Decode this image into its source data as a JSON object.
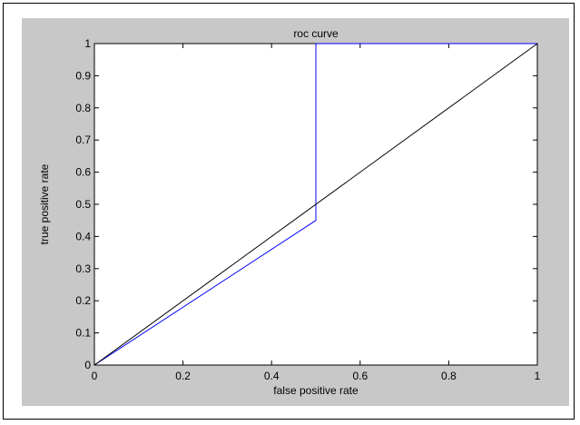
{
  "chart_data": {
    "type": "line",
    "title": "roc curve",
    "xlabel": "false positive rate",
    "ylabel": "true positive rate",
    "xlim": [
      0,
      1
    ],
    "ylim": [
      0,
      1
    ],
    "xticks": [
      0,
      0.2,
      0.4,
      0.6,
      0.8,
      1
    ],
    "xtick_labels": [
      "0",
      "0.2",
      "0.4",
      "0.6",
      "0.8",
      "1"
    ],
    "yticks": [
      0,
      0.1,
      0.2,
      0.3,
      0.4,
      0.5,
      0.6,
      0.7,
      0.8,
      0.9,
      1
    ],
    "ytick_labels": [
      "0",
      "0.1",
      "0.2",
      "0.3",
      "0.4",
      "0.5",
      "0.6",
      "0.7",
      "0.8",
      "0.9",
      "1"
    ],
    "grid": false,
    "series": [
      {
        "color": "#0000ff",
        "x": [
          0,
          0.5,
          0.5,
          1
        ],
        "y": [
          0,
          0.45,
          1,
          1
        ]
      },
      {
        "color": "#000000",
        "x": [
          0,
          1
        ],
        "y": [
          0,
          1
        ]
      }
    ]
  }
}
